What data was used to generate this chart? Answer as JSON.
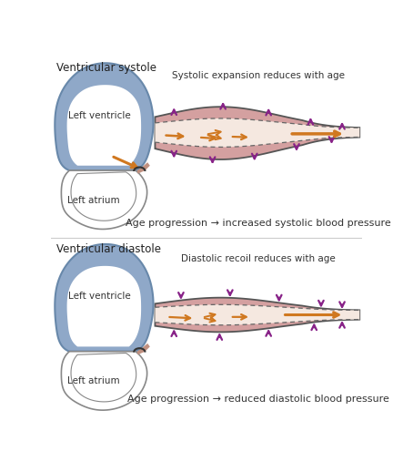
{
  "bg_color": "#ffffff",
  "heart_blue": "#8fa8c8",
  "heart_blue_dark": "#6888aa",
  "atrium_edge": "#888888",
  "vessel_fill": "#d4a0a0",
  "vessel_edge": "#555555",
  "lumen_fill": "#f5e8e0",
  "arrow_purple": "#882288",
  "arrow_orange": "#d07820",
  "text_dark": "#222222",
  "text_gray": "#444444",
  "title1": "Ventricular systole",
  "title2": "Ventricular diastole",
  "label_atrium1": "Left atrium",
  "label_ventricle1": "Left ventricle",
  "label_atrium2": "Left atrium",
  "label_ventricle2": "Left ventricle",
  "caption1": "Systolic expansion reduces with age",
  "caption2": "Diastolic recoil reduces with age",
  "text1": "Age progression → increased systolic blood pressure",
  "text2": "Age progression → reduced diastolic blood pressure"
}
